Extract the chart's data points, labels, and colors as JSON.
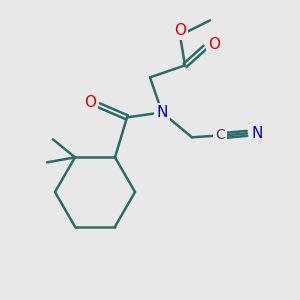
{
  "bg_color": "#e8e8e8",
  "bond_color": "#2d6b6b",
  "bond_width": 1.8,
  "atom_colors": {
    "O": "#dd0000",
    "N": "#0000cc",
    "C": "#444444"
  },
  "figsize": [
    3.0,
    3.0
  ],
  "dpi": 100
}
